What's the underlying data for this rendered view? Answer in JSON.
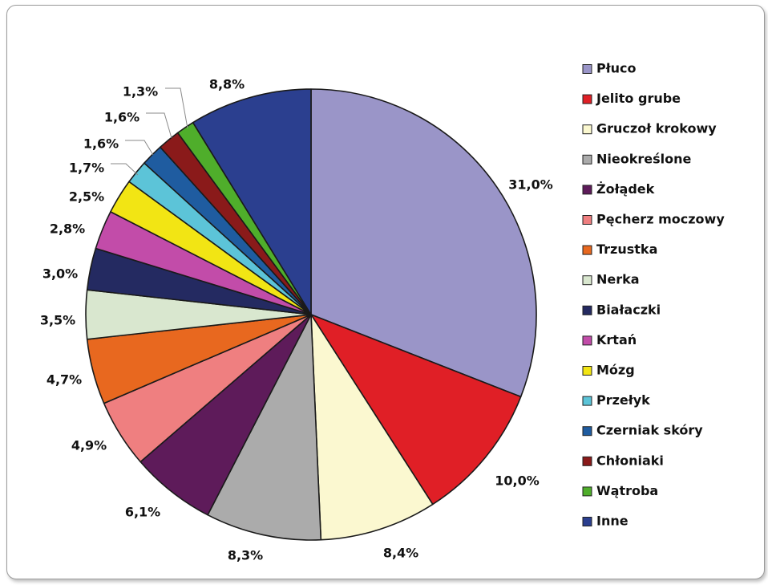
{
  "chart_data": {
    "type": "pie",
    "title": "",
    "legend_position": "right",
    "slices": [
      {
        "label": "Płuco",
        "value": 31.0,
        "pct": "31,0%",
        "color": "#9a95c8"
      },
      {
        "label": "Jelito grube",
        "value": 10.0,
        "pct": "10,0%",
        "color": "#e01f26"
      },
      {
        "label": "Gruczoł krokowy",
        "value": 8.4,
        "pct": "8,4%",
        "color": "#fbf8d0"
      },
      {
        "label": "Nieokreślone",
        "value": 8.3,
        "pct": "8,3%",
        "color": "#ababab"
      },
      {
        "label": "Żołądek",
        "value": 6.1,
        "pct": "6,1%",
        "color": "#5e1b5a"
      },
      {
        "label": "Pęcherz moczowy",
        "value": 4.9,
        "pct": "4,9%",
        "color": "#ef7f80"
      },
      {
        "label": "Trzustka",
        "value": 4.7,
        "pct": "4,7%",
        "color": "#e8681f"
      },
      {
        "label": "Nerka",
        "value": 3.5,
        "pct": "3,5%",
        "color": "#d9e7cf"
      },
      {
        "label": "Białaczki",
        "value": 3.0,
        "pct": "3,0%",
        "color": "#242a61"
      },
      {
        "label": "Krtań",
        "value": 2.8,
        "pct": "2,8%",
        "color": "#c24ca9"
      },
      {
        "label": "Mózg",
        "value": 2.5,
        "pct": "2,5%",
        "color": "#f2e514"
      },
      {
        "label": "Przełyk",
        "value": 1.7,
        "pct": "1,7%",
        "color": "#5cc4d8"
      },
      {
        "label": "Czerniak skóry",
        "value": 1.6,
        "pct": "1,6%",
        "color": "#1f5ca0"
      },
      {
        "label": "Chłoniaki",
        "value": 1.6,
        "pct": "1,6%",
        "color": "#8a1a1a"
      },
      {
        "label": "Wątroba",
        "value": 1.3,
        "pct": "1,3%",
        "color": "#4fae2b"
      },
      {
        "label": "Inne",
        "value": 8.8,
        "pct": "8,8%",
        "color": "#2b3f8f"
      }
    ]
  }
}
